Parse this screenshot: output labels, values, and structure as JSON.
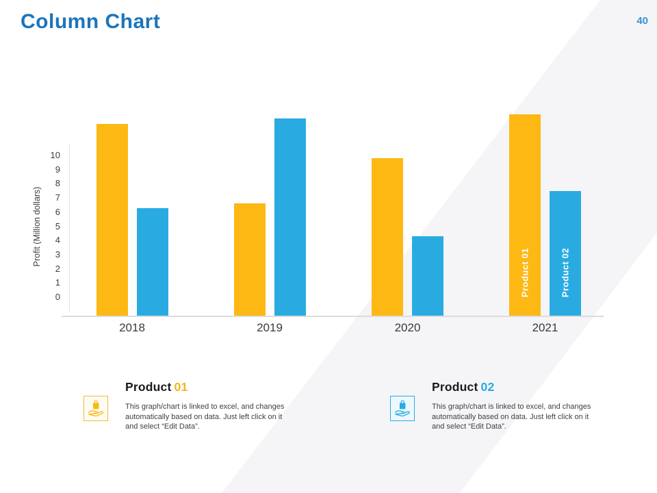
{
  "header": {
    "title": "Column Chart",
    "page_number": "40"
  },
  "chart_data": {
    "type": "bar",
    "title": "",
    "categories": [
      "2018",
      "2019",
      "2020",
      "2021"
    ],
    "series": [
      {
        "name": "Product 01",
        "color": "#FDB813",
        "values": [
          12.2,
          6.6,
          9.8,
          12.9
        ],
        "bar_label": "Product 01",
        "bar_label_on": "2021"
      },
      {
        "name": "Product 02",
        "color": "#29ABE2",
        "values": [
          6.3,
          12.6,
          4.3,
          7.5
        ],
        "bar_label": "Product 02",
        "bar_label_on": "2021"
      }
    ],
    "xlabel": "",
    "ylabel": "Profit  (Million dollars)",
    "yticks": [
      0,
      1,
      2,
      3,
      4,
      5,
      6,
      7,
      8,
      9,
      10
    ],
    "ylim": [
      0,
      10
    ],
    "grid": false,
    "legend_position": "labels-inside-last-bars"
  },
  "legend": {
    "items": [
      {
        "icon": "hand-holding-bag-icon",
        "accent": "#F2B41D",
        "icon_border": "#F0BC3A",
        "icon_bg": "#FEFCF2",
        "title_main": "Product",
        "title_number": "01",
        "body": "This graph/chart is linked to excel, and changes automatically based on data. Just left click on it and select “Edit Data”."
      },
      {
        "icon": "hand-holding-bag-icon",
        "accent": "#29ABE2",
        "icon_border": "#29ABE2",
        "icon_bg": "#EDF8FD",
        "title_main": "Product",
        "title_number": "02",
        "body": "This graph/chart is linked to excel, and changes automatically based on data. Just left click on it and select “Edit Data”."
      }
    ]
  },
  "colors": {
    "title_blue": "#1B75BC",
    "page_number_blue": "#3792CC",
    "series_yellow": "#FDB813",
    "series_blue": "#29ABE2",
    "diagonal_band": "#f5f5f7",
    "axis_line": "#dcdcdc",
    "text_dark": "#3d3d3d"
  }
}
